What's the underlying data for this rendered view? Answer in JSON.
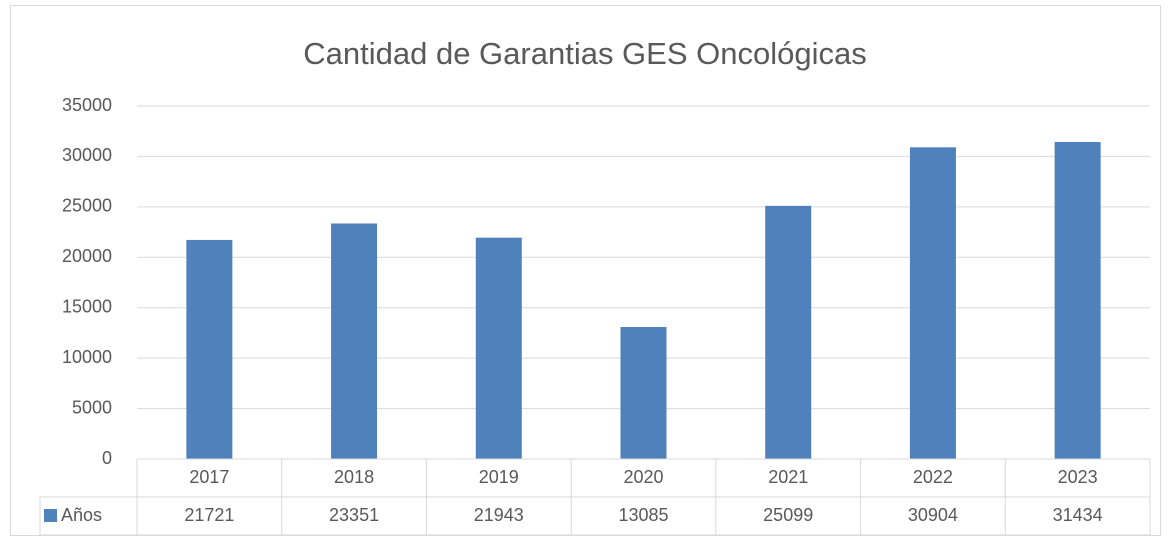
{
  "chart_data": {
    "type": "bar",
    "title": "Cantidad de Garantias GES Oncológicas",
    "categories": [
      "2017",
      "2018",
      "2019",
      "2020",
      "2021",
      "2022",
      "2023"
    ],
    "series": [
      {
        "name": "Años",
        "color": "#4f81bd",
        "values": [
          21721,
          23351,
          21943,
          13085,
          25099,
          30904,
          31434
        ]
      }
    ],
    "ylim": [
      0,
      35000
    ],
    "yticks": [
      0,
      5000,
      10000,
      15000,
      20000,
      25000,
      30000,
      35000
    ],
    "grid": true,
    "data_table": true
  }
}
